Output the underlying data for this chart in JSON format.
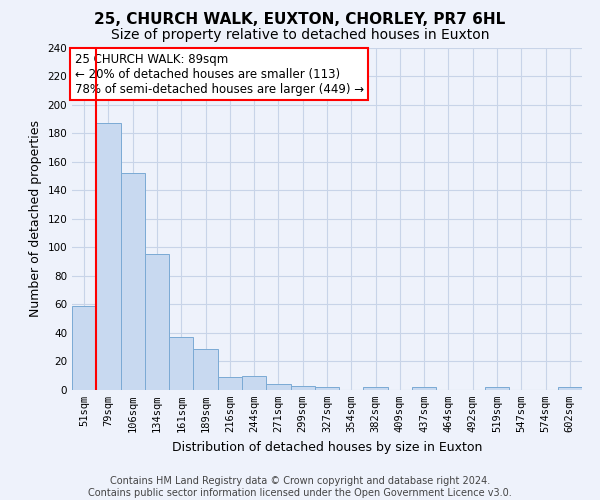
{
  "title": "25, CHURCH WALK, EUXTON, CHORLEY, PR7 6HL",
  "subtitle": "Size of property relative to detached houses in Euxton",
  "xlabel": "Distribution of detached houses by size in Euxton",
  "ylabel": "Number of detached properties",
  "bin_labels": [
    "51sqm",
    "79sqm",
    "106sqm",
    "134sqm",
    "161sqm",
    "189sqm",
    "216sqm",
    "244sqm",
    "271sqm",
    "299sqm",
    "327sqm",
    "354sqm",
    "382sqm",
    "409sqm",
    "437sqm",
    "464sqm",
    "492sqm",
    "519sqm",
    "547sqm",
    "574sqm",
    "602sqm"
  ],
  "bar_values": [
    59,
    187,
    152,
    95,
    37,
    29,
    9,
    10,
    4,
    3,
    2,
    0,
    2,
    0,
    2,
    0,
    0,
    2,
    0,
    0,
    2
  ],
  "bar_color": "#c8d9f0",
  "bar_edge_color": "#7baad4",
  "grid_color": "#c8d4e8",
  "background_color": "#eef2fb",
  "red_line_bin_index": 1,
  "annotation_text": "25 CHURCH WALK: 89sqm\n← 20% of detached houses are smaller (113)\n78% of semi-detached houses are larger (449) →",
  "annotation_box_color": "white",
  "annotation_box_edge": "red",
  "ylim": [
    0,
    240
  ],
  "yticks": [
    0,
    20,
    40,
    60,
    80,
    100,
    120,
    140,
    160,
    180,
    200,
    220,
    240
  ],
  "footer": "Contains HM Land Registry data © Crown copyright and database right 2024.\nContains public sector information licensed under the Open Government Licence v3.0.",
  "title_fontsize": 11,
  "subtitle_fontsize": 10,
  "xlabel_fontsize": 9,
  "ylabel_fontsize": 9,
  "tick_fontsize": 7.5,
  "annotation_fontsize": 8.5,
  "footer_fontsize": 7
}
